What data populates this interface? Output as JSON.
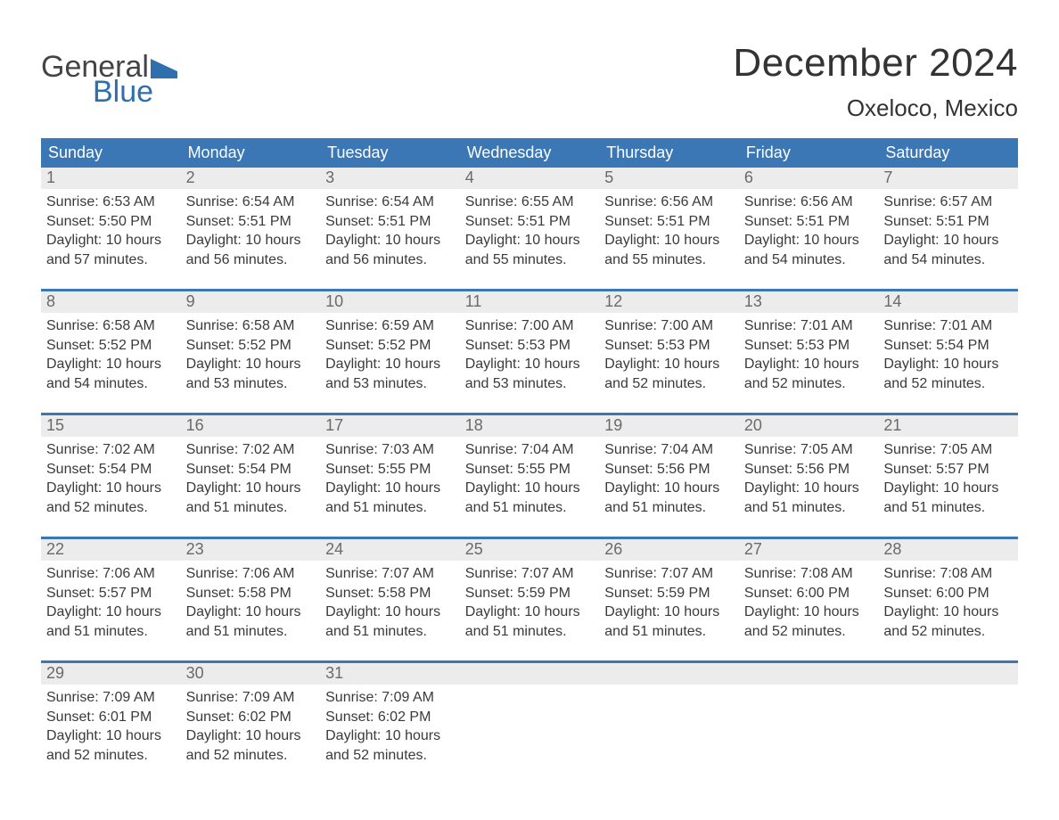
{
  "logo": {
    "line1": "General",
    "line2": "Blue",
    "flag_color": "#2f6fae"
  },
  "title": "December 2024",
  "location": "Oxeloco, Mexico",
  "header_bg": "#3b76b5",
  "daynum_bg": "#ececec",
  "text_color": "#3a3a3a",
  "day_headers": [
    "Sunday",
    "Monday",
    "Tuesday",
    "Wednesday",
    "Thursday",
    "Friday",
    "Saturday"
  ],
  "weeks": [
    [
      {
        "n": "1",
        "sr": "Sunrise: 6:53 AM",
        "ss": "Sunset: 5:50 PM",
        "d1": "Daylight: 10 hours",
        "d2": "and 57 minutes."
      },
      {
        "n": "2",
        "sr": "Sunrise: 6:54 AM",
        "ss": "Sunset: 5:51 PM",
        "d1": "Daylight: 10 hours",
        "d2": "and 56 minutes."
      },
      {
        "n": "3",
        "sr": "Sunrise: 6:54 AM",
        "ss": "Sunset: 5:51 PM",
        "d1": "Daylight: 10 hours",
        "d2": "and 56 minutes."
      },
      {
        "n": "4",
        "sr": "Sunrise: 6:55 AM",
        "ss": "Sunset: 5:51 PM",
        "d1": "Daylight: 10 hours",
        "d2": "and 55 minutes."
      },
      {
        "n": "5",
        "sr": "Sunrise: 6:56 AM",
        "ss": "Sunset: 5:51 PM",
        "d1": "Daylight: 10 hours",
        "d2": "and 55 minutes."
      },
      {
        "n": "6",
        "sr": "Sunrise: 6:56 AM",
        "ss": "Sunset: 5:51 PM",
        "d1": "Daylight: 10 hours",
        "d2": "and 54 minutes."
      },
      {
        "n": "7",
        "sr": "Sunrise: 6:57 AM",
        "ss": "Sunset: 5:51 PM",
        "d1": "Daylight: 10 hours",
        "d2": "and 54 minutes."
      }
    ],
    [
      {
        "n": "8",
        "sr": "Sunrise: 6:58 AM",
        "ss": "Sunset: 5:52 PM",
        "d1": "Daylight: 10 hours",
        "d2": "and 54 minutes."
      },
      {
        "n": "9",
        "sr": "Sunrise: 6:58 AM",
        "ss": "Sunset: 5:52 PM",
        "d1": "Daylight: 10 hours",
        "d2": "and 53 minutes."
      },
      {
        "n": "10",
        "sr": "Sunrise: 6:59 AM",
        "ss": "Sunset: 5:52 PM",
        "d1": "Daylight: 10 hours",
        "d2": "and 53 minutes."
      },
      {
        "n": "11",
        "sr": "Sunrise: 7:00 AM",
        "ss": "Sunset: 5:53 PM",
        "d1": "Daylight: 10 hours",
        "d2": "and 53 minutes."
      },
      {
        "n": "12",
        "sr": "Sunrise: 7:00 AM",
        "ss": "Sunset: 5:53 PM",
        "d1": "Daylight: 10 hours",
        "d2": "and 52 minutes."
      },
      {
        "n": "13",
        "sr": "Sunrise: 7:01 AM",
        "ss": "Sunset: 5:53 PM",
        "d1": "Daylight: 10 hours",
        "d2": "and 52 minutes."
      },
      {
        "n": "14",
        "sr": "Sunrise: 7:01 AM",
        "ss": "Sunset: 5:54 PM",
        "d1": "Daylight: 10 hours",
        "d2": "and 52 minutes."
      }
    ],
    [
      {
        "n": "15",
        "sr": "Sunrise: 7:02 AM",
        "ss": "Sunset: 5:54 PM",
        "d1": "Daylight: 10 hours",
        "d2": "and 52 minutes."
      },
      {
        "n": "16",
        "sr": "Sunrise: 7:02 AM",
        "ss": "Sunset: 5:54 PM",
        "d1": "Daylight: 10 hours",
        "d2": "and 51 minutes."
      },
      {
        "n": "17",
        "sr": "Sunrise: 7:03 AM",
        "ss": "Sunset: 5:55 PM",
        "d1": "Daylight: 10 hours",
        "d2": "and 51 minutes."
      },
      {
        "n": "18",
        "sr": "Sunrise: 7:04 AM",
        "ss": "Sunset: 5:55 PM",
        "d1": "Daylight: 10 hours",
        "d2": "and 51 minutes."
      },
      {
        "n": "19",
        "sr": "Sunrise: 7:04 AM",
        "ss": "Sunset: 5:56 PM",
        "d1": "Daylight: 10 hours",
        "d2": "and 51 minutes."
      },
      {
        "n": "20",
        "sr": "Sunrise: 7:05 AM",
        "ss": "Sunset: 5:56 PM",
        "d1": "Daylight: 10 hours",
        "d2": "and 51 minutes."
      },
      {
        "n": "21",
        "sr": "Sunrise: 7:05 AM",
        "ss": "Sunset: 5:57 PM",
        "d1": "Daylight: 10 hours",
        "d2": "and 51 minutes."
      }
    ],
    [
      {
        "n": "22",
        "sr": "Sunrise: 7:06 AM",
        "ss": "Sunset: 5:57 PM",
        "d1": "Daylight: 10 hours",
        "d2": "and 51 minutes."
      },
      {
        "n": "23",
        "sr": "Sunrise: 7:06 AM",
        "ss": "Sunset: 5:58 PM",
        "d1": "Daylight: 10 hours",
        "d2": "and 51 minutes."
      },
      {
        "n": "24",
        "sr": "Sunrise: 7:07 AM",
        "ss": "Sunset: 5:58 PM",
        "d1": "Daylight: 10 hours",
        "d2": "and 51 minutes."
      },
      {
        "n": "25",
        "sr": "Sunrise: 7:07 AM",
        "ss": "Sunset: 5:59 PM",
        "d1": "Daylight: 10 hours",
        "d2": "and 51 minutes."
      },
      {
        "n": "26",
        "sr": "Sunrise: 7:07 AM",
        "ss": "Sunset: 5:59 PM",
        "d1": "Daylight: 10 hours",
        "d2": "and 51 minutes."
      },
      {
        "n": "27",
        "sr": "Sunrise: 7:08 AM",
        "ss": "Sunset: 6:00 PM",
        "d1": "Daylight: 10 hours",
        "d2": "and 52 minutes."
      },
      {
        "n": "28",
        "sr": "Sunrise: 7:08 AM",
        "ss": "Sunset: 6:00 PM",
        "d1": "Daylight: 10 hours",
        "d2": "and 52 minutes."
      }
    ],
    [
      {
        "n": "29",
        "sr": "Sunrise: 7:09 AM",
        "ss": "Sunset: 6:01 PM",
        "d1": "Daylight: 10 hours",
        "d2": "and 52 minutes."
      },
      {
        "n": "30",
        "sr": "Sunrise: 7:09 AM",
        "ss": "Sunset: 6:02 PM",
        "d1": "Daylight: 10 hours",
        "d2": "and 52 minutes."
      },
      {
        "n": "31",
        "sr": "Sunrise: 7:09 AM",
        "ss": "Sunset: 6:02 PM",
        "d1": "Daylight: 10 hours",
        "d2": "and 52 minutes."
      },
      null,
      null,
      null,
      null
    ]
  ]
}
